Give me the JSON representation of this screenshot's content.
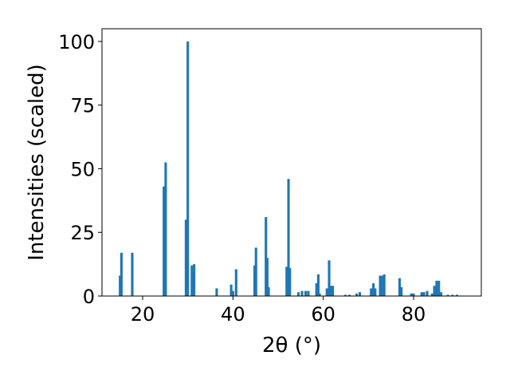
{
  "chart_data": {
    "type": "bar",
    "xlabel": "2θ (°)",
    "ylabel": "Intensities (scaled)",
    "xlim": [
      11,
      95
    ],
    "ylim": [
      0,
      105
    ],
    "x_ticks": [
      20,
      40,
      60,
      80
    ],
    "y_ticks": [
      0,
      25,
      50,
      75,
      100
    ],
    "grid": false,
    "bar_color": "#1f77b4",
    "bar_width": 0.55,
    "series": [
      {
        "x": [
          15.0,
          15.3,
          17.7,
          24.7,
          25.1,
          29.6,
          30.0,
          30.9,
          31.4,
          36.4,
          39.6,
          40.0,
          40.7,
          44.8,
          45.1,
          47.3,
          47.6,
          47.9,
          51.9,
          52.3,
          52.6,
          54.5,
          55.3,
          56.1,
          56.7,
          58.5,
          58.9,
          59.2,
          60.8,
          61.3,
          61.7,
          62.1,
          64.9,
          65.8,
          67.4,
          68.1,
          70.6,
          71.1,
          71.5,
          72.6,
          73.0,
          73.5,
          76.9,
          77.3,
          79.5,
          80.0,
          81.8,
          82.3,
          83.0,
          84.1,
          84.6,
          85.1,
          85.6,
          86.1,
          87.6,
          88.6,
          89.6
        ],
        "values": [
          8,
          17,
          17,
          43,
          52.5,
          30,
          100,
          12,
          12.5,
          3,
          4.5,
          2,
          10.5,
          12,
          19,
          31,
          15,
          3.5,
          11.5,
          46,
          11,
          1.5,
          2,
          2,
          2,
          5,
          8.5,
          1,
          3,
          14,
          4,
          4,
          0.5,
          0.5,
          1,
          1.5,
          3,
          5,
          3,
          8,
          8,
          8.5,
          7,
          3.5,
          1,
          1,
          1.5,
          1.5,
          2,
          1,
          4,
          6,
          6,
          1.5,
          0.5,
          0.5,
          0.5
        ]
      }
    ]
  }
}
